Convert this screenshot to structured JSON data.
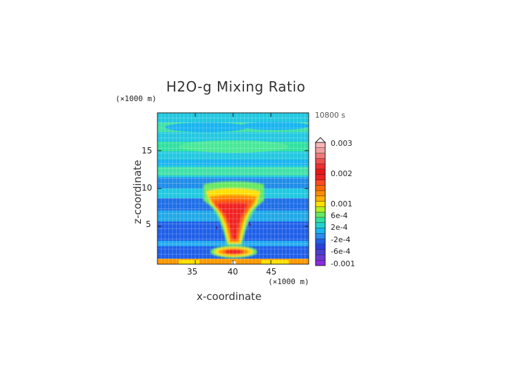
{
  "chart_data": {
    "type": "heatmap",
    "title": "H2O-g Mixing Ratio",
    "time_label": "10800 s",
    "xlabel": "x-coordinate",
    "ylabel": "z-coordinate",
    "x_unit": "(×1000 m)",
    "z_unit": "(×1000 m)",
    "xlim": [
      30,
      50
    ],
    "ylim": [
      0,
      20
    ],
    "x_ticks": [
      "35",
      "40",
      "45"
    ],
    "y_ticks": [
      "5",
      "10",
      "15"
    ],
    "colorbar": {
      "labels": [
        "0.003",
        "0.002",
        "0.001",
        "6e-4",
        "2e-4",
        "-2e-4",
        "-6e-4",
        "-0.001"
      ],
      "extend": "max",
      "levels": [
        {
          "color": "#8a2be2"
        },
        {
          "color": "#6a3ad0"
        },
        {
          "color": "#4b3fd0"
        },
        {
          "color": "#2a3fe0"
        },
        {
          "color": "#1f5fe8"
        },
        {
          "color": "#2a8cf0"
        },
        {
          "color": "#18b4f0"
        },
        {
          "color": "#20d2d0"
        },
        {
          "color": "#30e0a0"
        },
        {
          "color": "#66e860"
        },
        {
          "color": "#b4f020"
        },
        {
          "color": "#ffe000"
        },
        {
          "color": "#ffb000"
        },
        {
          "color": "#ff8c00"
        },
        {
          "color": "#ff6a00"
        },
        {
          "color": "#ff4a20"
        },
        {
          "color": "#f02020"
        },
        {
          "color": "#e81818"
        },
        {
          "color": "#f03030"
        },
        {
          "color": "#f05050"
        },
        {
          "color": "#f07878"
        },
        {
          "color": "#f0a0a0"
        },
        {
          "color": "#f8b4b4"
        }
      ]
    },
    "grid": true
  }
}
